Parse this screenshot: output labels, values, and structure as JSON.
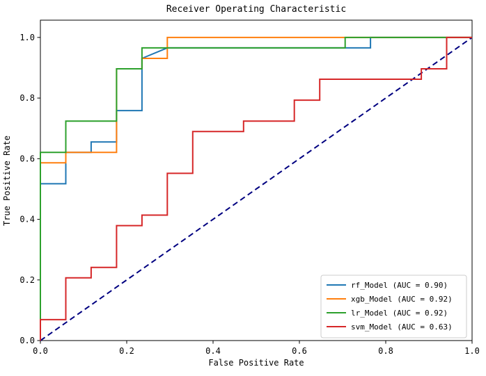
{
  "title": "Receiver Operating Characteristic",
  "chart_data": {
    "type": "line",
    "title": "Receiver Operating Characteristic",
    "xlabel": "False Positive Rate",
    "ylabel": "True Positive Rate",
    "xlim": [
      0.0,
      1.0
    ],
    "ylim": [
      0.0,
      1.057
    ],
    "xticks": [
      0.0,
      0.2,
      0.4,
      0.6,
      0.8,
      1.0
    ],
    "yticks": [
      0.0,
      0.2,
      0.4,
      0.6,
      0.8,
      1.0
    ],
    "grid": false,
    "legend_position": "lower right",
    "series": [
      {
        "name": "rf_Model (AUC = 0.90)",
        "color": "#1f77b4",
        "style": "solid",
        "legend": true,
        "points": [
          [
            0,
            0
          ],
          [
            0,
            0.5172
          ],
          [
            0.0588,
            0.5172
          ],
          [
            0.0588,
            0.6207
          ],
          [
            0.1176,
            0.6207
          ],
          [
            0.1176,
            0.6552
          ],
          [
            0.1765,
            0.6552
          ],
          [
            0.1765,
            0.7586
          ],
          [
            0.2353,
            0.7586
          ],
          [
            0.2353,
            0.931
          ],
          [
            0.2941,
            0.9655
          ],
          [
            0.7647,
            0.9655
          ],
          [
            0.7647,
            1.0
          ],
          [
            1.0,
            1.0
          ]
        ]
      },
      {
        "name": "xgb_Model (AUC = 0.92)",
        "color": "#ff7f0e",
        "style": "solid",
        "legend": true,
        "points": [
          [
            0,
            0
          ],
          [
            0,
            0.5862
          ],
          [
            0.0588,
            0.5862
          ],
          [
            0.0588,
            0.6207
          ],
          [
            0.1765,
            0.6207
          ],
          [
            0.1765,
            0.8966
          ],
          [
            0.2353,
            0.8966
          ],
          [
            0.2353,
            0.931
          ],
          [
            0.2941,
            0.931
          ],
          [
            0.2941,
            1.0
          ],
          [
            1.0,
            1.0
          ]
        ]
      },
      {
        "name": "lr_Model (AUC = 0.92)",
        "color": "#2ca02c",
        "style": "solid",
        "legend": true,
        "points": [
          [
            0,
            0
          ],
          [
            0,
            0.6207
          ],
          [
            0.0588,
            0.6207
          ],
          [
            0.0588,
            0.7241
          ],
          [
            0.1765,
            0.7241
          ],
          [
            0.1765,
            0.8966
          ],
          [
            0.2353,
            0.8966
          ],
          [
            0.2353,
            0.9655
          ],
          [
            0.7059,
            0.9655
          ],
          [
            0.7059,
            1.0
          ],
          [
            1.0,
            1.0
          ]
        ]
      },
      {
        "name": "svm_Model (AUC = 0.63)",
        "color": "#d62728",
        "style": "solid",
        "legend": true,
        "points": [
          [
            0,
            0
          ],
          [
            0,
            0.069
          ],
          [
            0.0588,
            0.069
          ],
          [
            0.0588,
            0.2069
          ],
          [
            0.1176,
            0.2069
          ],
          [
            0.1176,
            0.2414
          ],
          [
            0.1765,
            0.2414
          ],
          [
            0.1765,
            0.3793
          ],
          [
            0.2353,
            0.3793
          ],
          [
            0.2353,
            0.4138
          ],
          [
            0.2941,
            0.4138
          ],
          [
            0.2941,
            0.5517
          ],
          [
            0.3529,
            0.5517
          ],
          [
            0.3529,
            0.6897
          ],
          [
            0.4706,
            0.6897
          ],
          [
            0.4706,
            0.7241
          ],
          [
            0.5882,
            0.7241
          ],
          [
            0.5882,
            0.7931
          ],
          [
            0.6471,
            0.7931
          ],
          [
            0.6471,
            0.8621
          ],
          [
            0.8824,
            0.8621
          ],
          [
            0.8824,
            0.8966
          ],
          [
            0.9412,
            0.8966
          ],
          [
            0.9412,
            1.0
          ],
          [
            1.0,
            1.0
          ]
        ]
      },
      {
        "name": "chance-diagonal",
        "color": "#000080",
        "style": "dashed",
        "legend": false,
        "points": [
          [
            0,
            0
          ],
          [
            1.0,
            1.0
          ]
        ]
      }
    ]
  }
}
